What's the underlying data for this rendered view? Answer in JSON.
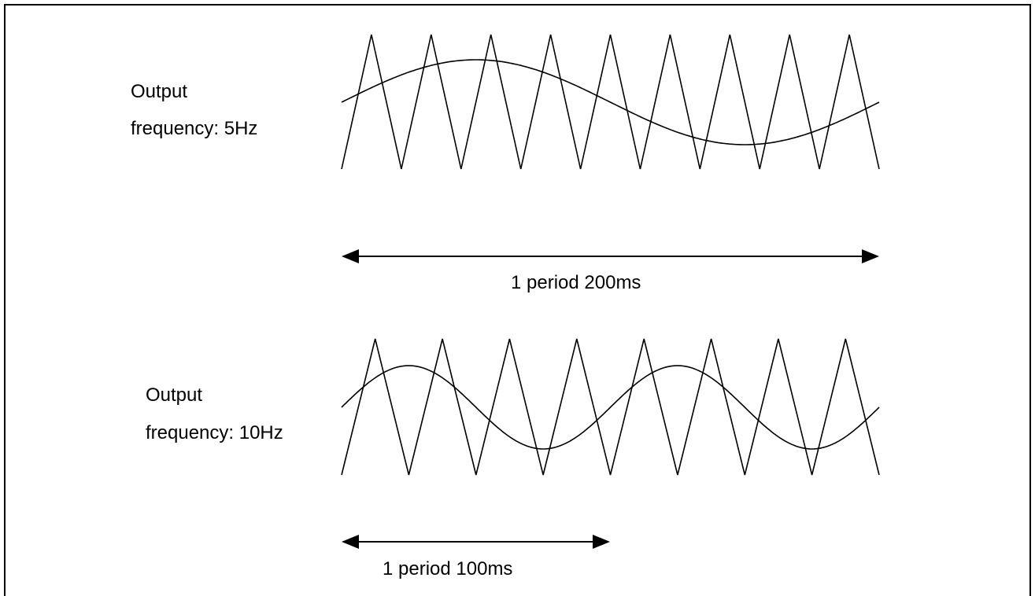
{
  "panels": [
    {
      "label_line1": "Output",
      "label_line2": "frequency: 5Hz",
      "period_label": "1 period 200ms",
      "output_frequency_hz": 5,
      "carrier_peaks": 9,
      "sine_cycles": 1
    },
    {
      "label_line1": "Output",
      "label_line2": "frequency: 10Hz",
      "period_label": "1 period 100ms",
      "output_frequency_hz": 10,
      "carrier_peaks": 8,
      "sine_cycles": 2
    }
  ],
  "colors": {
    "line": "#000000",
    "background": "#ffffff",
    "border": "#000000"
  }
}
